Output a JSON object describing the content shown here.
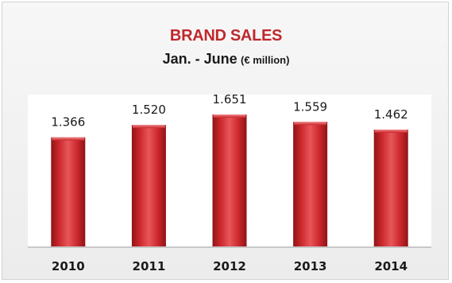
{
  "chart_data": {
    "type": "bar",
    "title": "BRAND SALES",
    "subtitle": "Jan. - June",
    "unit": "(€ million)",
    "categories": [
      "2010",
      "2011",
      "2012",
      "2013",
      "2014"
    ],
    "values": [
      1366,
      1520,
      1651,
      1559,
      1462
    ],
    "value_labels": [
      "1.366",
      "1.520",
      "1.651",
      "1.559",
      "1.462"
    ],
    "ylim": [
      0,
      1900
    ],
    "grid": false,
    "legend": "none",
    "bar_color": "#c9262a",
    "title_color": "#c0282d"
  }
}
